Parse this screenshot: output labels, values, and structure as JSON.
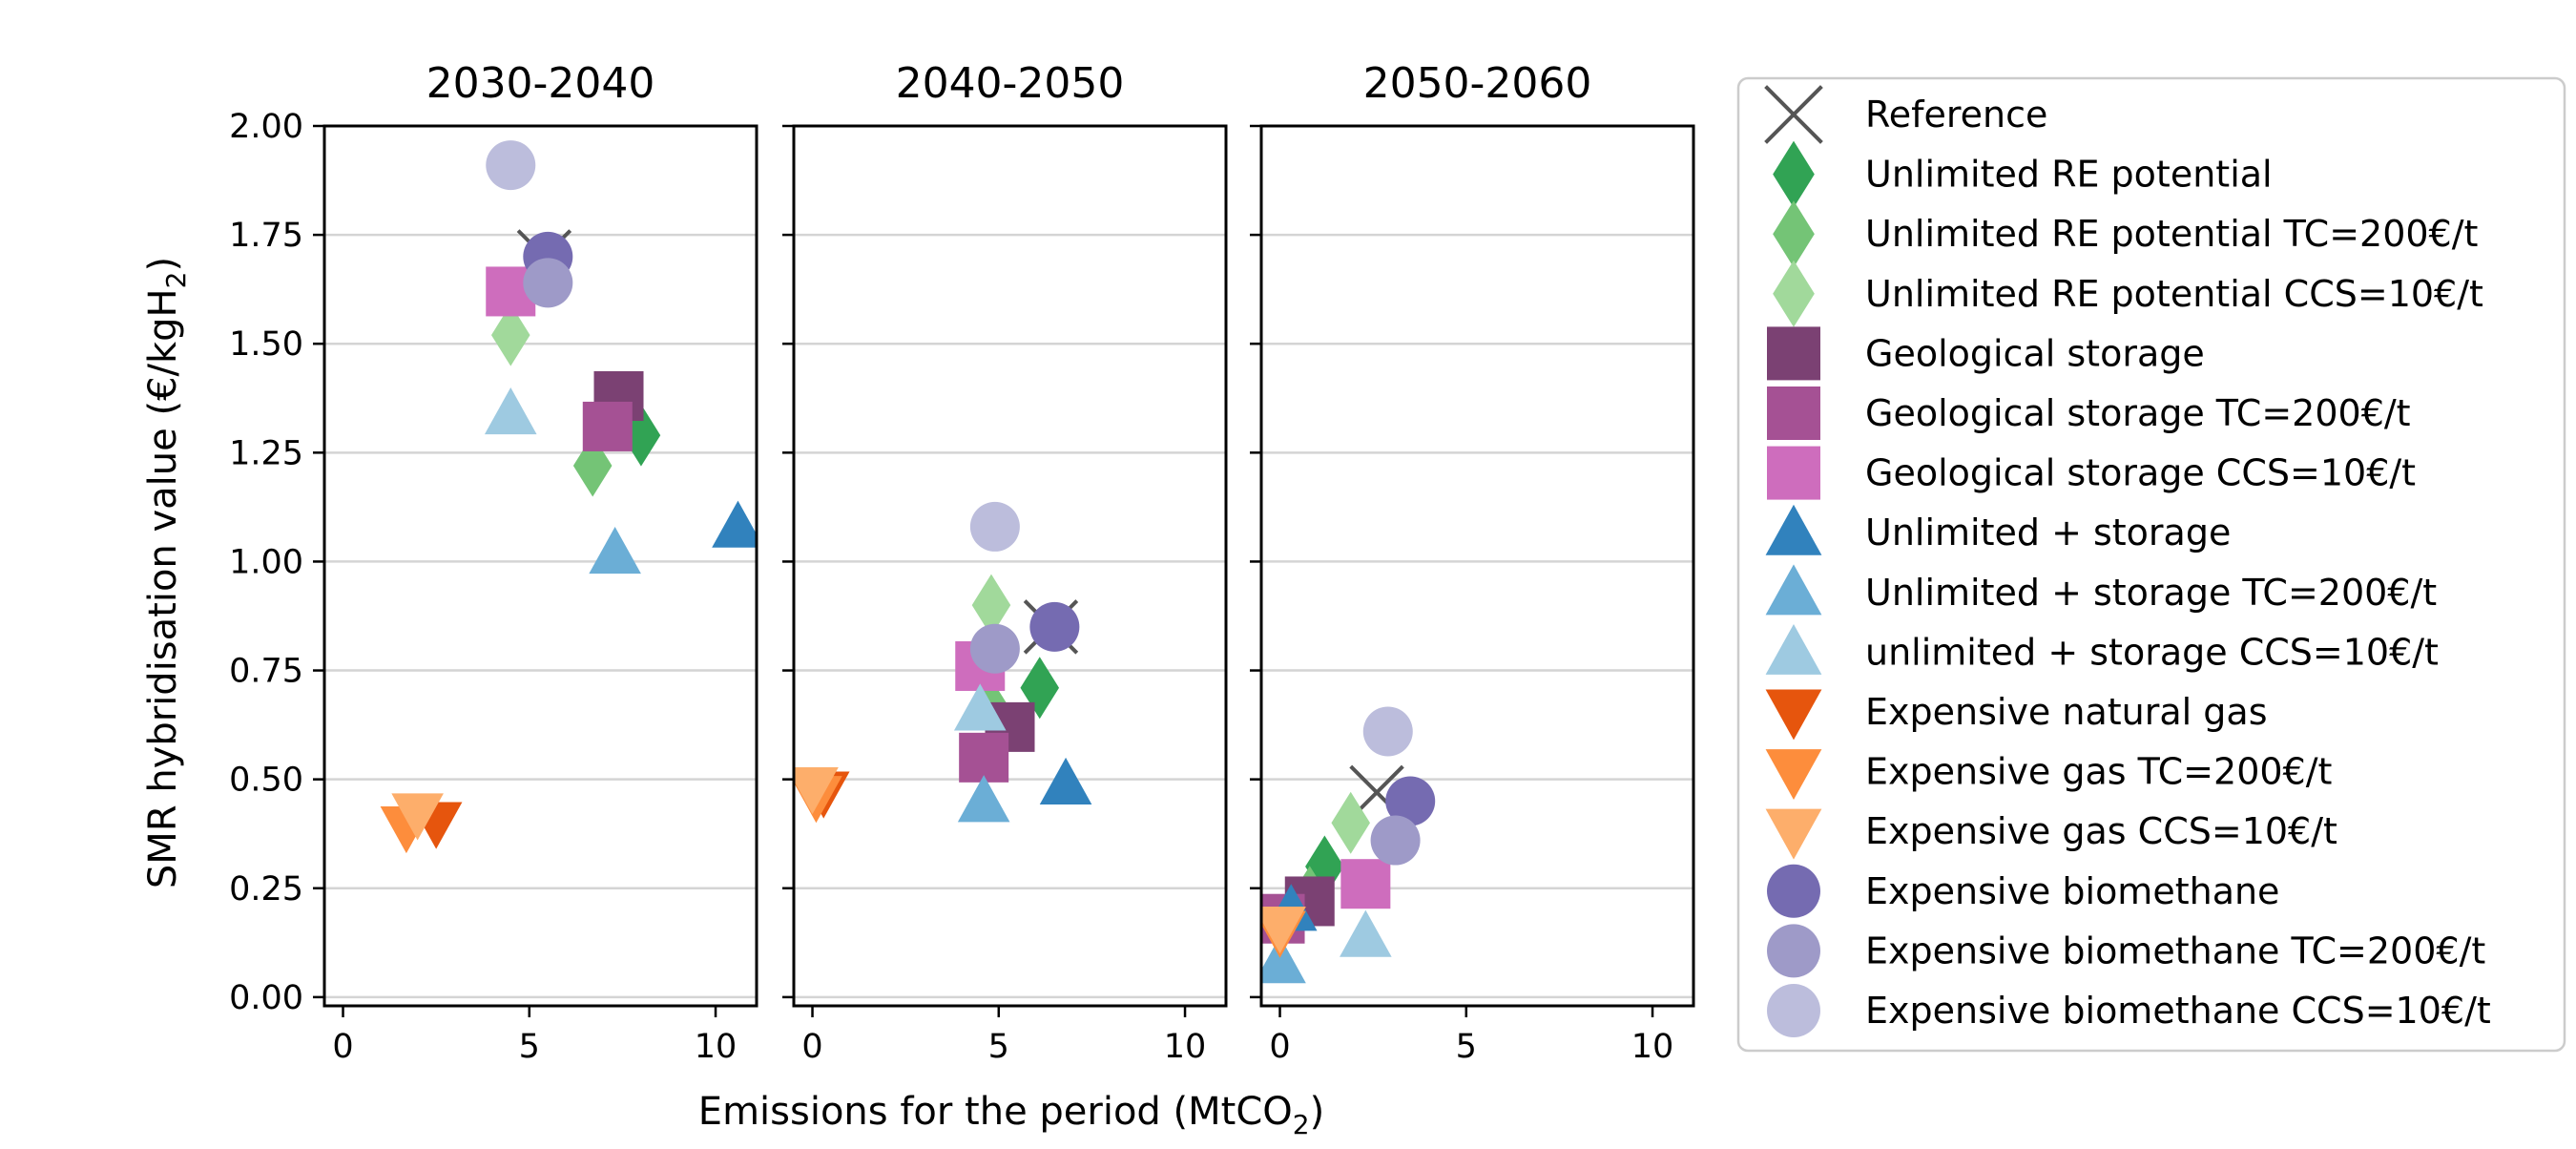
{
  "chart_data": {
    "type": "scatter",
    "ylabel": "SMR hybridisation value (€/kgH",
    "ylabel_sub": "2",
    "ylabel_end": ")",
    "xlabel": "Emissions for the period (MtCO",
    "xlabel_sub": "2",
    "xlabel_end": ")",
    "xlim": [
      -0.5,
      11.1
    ],
    "ylim": [
      -0.02,
      2.0
    ],
    "xticks": [
      0,
      5,
      10
    ],
    "yticks": [
      0.0,
      0.25,
      0.5,
      0.75,
      1.0,
      1.25,
      1.5,
      1.75,
      2.0
    ],
    "ytick_labels": [
      "0.00",
      "0.25",
      "0.50",
      "0.75",
      "1.00",
      "1.25",
      "1.50",
      "1.75",
      "2.00"
    ],
    "xtick_labels": [
      "0",
      "5",
      "10"
    ],
    "grid": "y-axis horizontal lines",
    "legend_position": "right",
    "panels": [
      "2030-2040",
      "2040-2050",
      "2050-2060"
    ],
    "series": [
      {
        "name": "Reference",
        "marker": "x",
        "color": "#555555",
        "points": [
          [
            5.4,
            1.7
          ],
          [
            6.4,
            0.85
          ],
          [
            2.6,
            0.47
          ]
        ]
      },
      {
        "name": "Unlimited RE potential",
        "marker": "diamond",
        "color": "#31a354",
        "points": [
          [
            8.0,
            1.29
          ],
          [
            6.1,
            0.71
          ],
          [
            1.2,
            0.3
          ]
        ]
      },
      {
        "name": "Unlimited RE potential TC=200€/t",
        "marker": "diamond",
        "color": "#74c476",
        "points": [
          [
            6.7,
            1.22
          ],
          [
            4.8,
            0.66
          ],
          [
            0.8,
            0.23
          ]
        ]
      },
      {
        "name": "Unlimited RE potential CCS=10€/t",
        "marker": "diamond",
        "color": "#a1d99b",
        "points": [
          [
            4.5,
            1.52
          ],
          [
            4.8,
            0.9
          ],
          [
            1.9,
            0.4
          ]
        ]
      },
      {
        "name": "Geological storage",
        "marker": "square",
        "color": "#7b4173",
        "points": [
          [
            7.4,
            1.38
          ],
          [
            5.3,
            0.62
          ],
          [
            0.8,
            0.22
          ]
        ]
      },
      {
        "name": "Geological storage TC=200€/t",
        "marker": "square",
        "color": "#a55194",
        "points": [
          [
            7.1,
            1.31
          ],
          [
            4.6,
            0.55
          ],
          [
            0.0,
            0.18
          ]
        ]
      },
      {
        "name": "Geological storage CCS=10€/t",
        "marker": "square",
        "color": "#ce6dbd",
        "points": [
          [
            4.5,
            1.62
          ],
          [
            4.5,
            0.76
          ],
          [
            2.3,
            0.26
          ]
        ]
      },
      {
        "name": "Unlimited + storage",
        "marker": "triangle-up",
        "color": "#3182bd",
        "points": [
          [
            10.6,
            1.08
          ],
          [
            6.8,
            0.49
          ],
          [
            0.3,
            0.2
          ]
        ]
      },
      {
        "name": "Unlimited + storage TC=200€/t",
        "marker": "triangle-up",
        "color": "#6baed6",
        "points": [
          [
            7.3,
            1.02
          ],
          [
            4.6,
            0.45
          ],
          [
            0.0,
            0.08
          ]
        ]
      },
      {
        "name": "unlimited + storage CCS=10€/t",
        "marker": "triangle-up",
        "color": "#9ecae1",
        "points": [
          [
            4.5,
            1.34
          ],
          [
            4.5,
            0.66
          ],
          [
            2.3,
            0.14
          ]
        ]
      },
      {
        "name": "Expensive natural gas",
        "marker": "triangle-down",
        "color": "#e6550d",
        "points": [
          [
            2.5,
            0.4
          ],
          [
            0.3,
            0.47
          ],
          [
            0.0,
            0.16
          ]
        ]
      },
      {
        "name": "Expensive gas TC=200€/t",
        "marker": "triangle-down",
        "color": "#fd8d3c",
        "points": [
          [
            1.7,
            0.39
          ],
          [
            0.1,
            0.46
          ],
          [
            0.0,
            0.15
          ]
        ]
      },
      {
        "name": "Expensive gas CCS=10€/t",
        "marker": "triangle-down",
        "color": "#fdae6b",
        "points": [
          [
            2.0,
            0.42
          ],
          [
            0.0,
            0.48
          ],
          [
            0.0,
            0.16
          ]
        ]
      },
      {
        "name": "Expensive biomethane",
        "marker": "circle",
        "color": "#756bb1",
        "points": [
          [
            5.5,
            1.7
          ],
          [
            6.5,
            0.85
          ],
          [
            3.5,
            0.45
          ]
        ]
      },
      {
        "name": "Expensive biomethane TC=200€/t",
        "marker": "circle",
        "color": "#9e9ac8",
        "points": [
          [
            5.5,
            1.64
          ],
          [
            4.9,
            0.8
          ],
          [
            3.1,
            0.36
          ]
        ]
      },
      {
        "name": "Expensive biomethane CCS=10€/t",
        "marker": "circle",
        "color": "#bcbddc",
        "points": [
          [
            4.5,
            1.91
          ],
          [
            4.9,
            1.08
          ],
          [
            2.9,
            0.61
          ]
        ]
      }
    ]
  }
}
